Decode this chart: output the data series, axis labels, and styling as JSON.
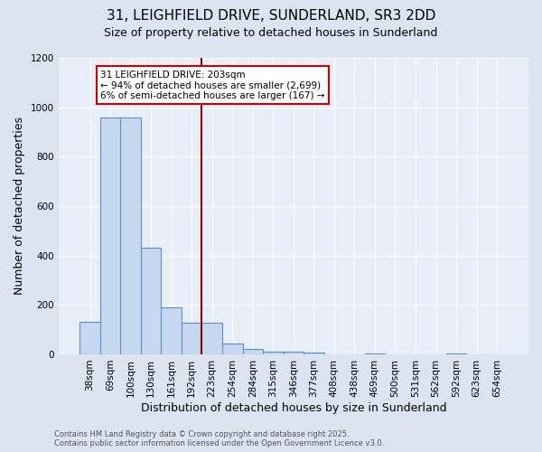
{
  "title1": "31, LEIGHFIELD DRIVE, SUNDERLAND, SR3 2DD",
  "title2": "Size of property relative to detached houses in Sunderland",
  "xlabel": "Distribution of detached houses by size in Sunderland",
  "ylabel": "Number of detached properties",
  "categories": [
    "38sqm",
    "69sqm",
    "100sqm",
    "130sqm",
    "161sqm",
    "192sqm",
    "223sqm",
    "254sqm",
    "284sqm",
    "315sqm",
    "346sqm",
    "377sqm",
    "408sqm",
    "438sqm",
    "469sqm",
    "500sqm",
    "531sqm",
    "562sqm",
    "592sqm",
    "623sqm",
    "654sqm"
  ],
  "values": [
    130,
    960,
    960,
    432,
    190,
    128,
    128,
    42,
    20,
    10,
    10,
    8,
    0,
    0,
    5,
    0,
    0,
    0,
    5,
    0,
    0
  ],
  "bar_color": "#c5d8ef",
  "bar_edge_color": "#5b8fc9",
  "vline_x": 5.5,
  "vline_color": "#8b0000",
  "annotation_text": "31 LEIGHFIELD DRIVE: 203sqm\n← 94% of detached houses are smaller (2,699)\n6% of semi-detached houses are larger (167) →",
  "annotation_box_facecolor": "#ffffff",
  "annotation_box_edgecolor": "#cc0000",
  "ylim": [
    0,
    1200
  ],
  "yticks": [
    0,
    200,
    400,
    600,
    800,
    1000,
    1200
  ],
  "footnote1": "Contains HM Land Registry data © Crown copyright and database right 2025.",
  "footnote2": "Contains public sector information licensed under the Open Government Licence v3.0.",
  "bg_color": "#dce4f0",
  "plot_bg_color": "#e8eef8",
  "title_fontsize": 11,
  "subtitle_fontsize": 9,
  "axis_label_fontsize": 9,
  "tick_fontsize": 7.5,
  "annotation_fontsize": 7.5,
  "footnote_fontsize": 6
}
